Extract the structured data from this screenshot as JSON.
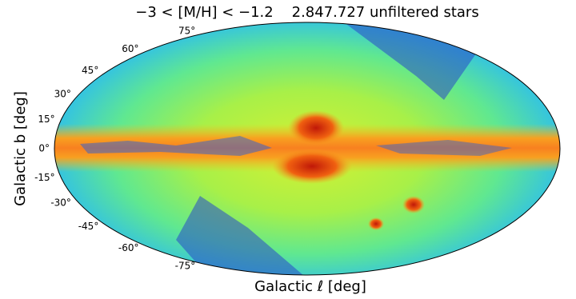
{
  "chart_data": {
    "type": "mollweide",
    "title": "−3 < [M/H] < −1.2    2.847.727 unfiltered stars",
    "xlabel": "Galactic ℓ [deg]",
    "ylabel": "Galactic b [deg]",
    "ylim": [
      -90,
      90
    ],
    "yticks": [
      {
        "value": 75,
        "label": "75°"
      },
      {
        "value": 60,
        "label": "60°"
      },
      {
        "value": 45,
        "label": "45°"
      },
      {
        "value": 30,
        "label": "30°"
      },
      {
        "value": 15,
        "label": "15°"
      },
      {
        "value": 0,
        "label": "0°"
      },
      {
        "value": -15,
        "label": "-15°"
      },
      {
        "value": -30,
        "label": "-30°"
      },
      {
        "value": -45,
        "label": "-45°"
      },
      {
        "value": -60,
        "label": "-60°"
      },
      {
        "value": -75,
        "label": "-75°"
      }
    ]
  }
}
